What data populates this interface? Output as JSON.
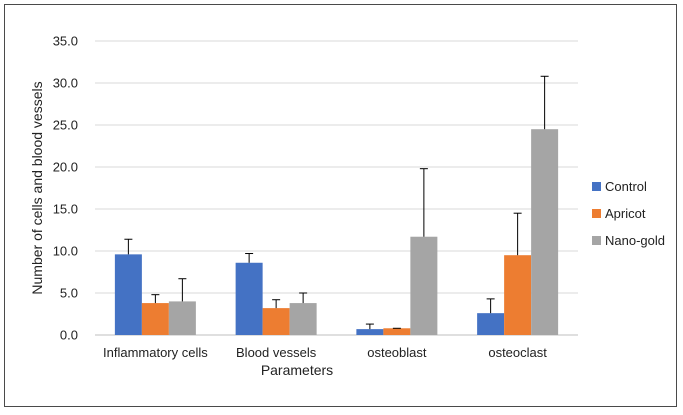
{
  "chart_data": {
    "type": "bar",
    "title": "",
    "xlabel": "Parameters",
    "ylabel": "Number of cells and blood vessels",
    "ylim": [
      0,
      35
    ],
    "y_ticks": [
      "0.0",
      "5.0",
      "10.0",
      "15.0",
      "20.0",
      "25.0",
      "30.0",
      "35.0"
    ],
    "y_tick_values": [
      0,
      5,
      10,
      15,
      20,
      25,
      30,
      35
    ],
    "grid": true,
    "legend_position": "right",
    "categories": [
      "Inflammatory cells",
      "Blood vessels",
      "osteoblast",
      "osteoclast"
    ],
    "series": [
      {
        "name": "Control",
        "color": "#4472C4",
        "values": [
          9.6,
          8.6,
          0.7,
          2.6
        ],
        "error": [
          1.8,
          1.1,
          0.6,
          1.7
        ]
      },
      {
        "name": "Apricot",
        "color": "#ED7D31",
        "values": [
          3.8,
          3.2,
          0.8,
          9.5
        ],
        "error": [
          1.0,
          1.0,
          0.0,
          5.0
        ]
      },
      {
        "name": "Nano-gold",
        "color": "#A5A5A5",
        "values": [
          4.0,
          3.8,
          11.7,
          24.5
        ],
        "error": [
          2.7,
          1.2,
          8.1,
          6.3
        ]
      }
    ]
  }
}
